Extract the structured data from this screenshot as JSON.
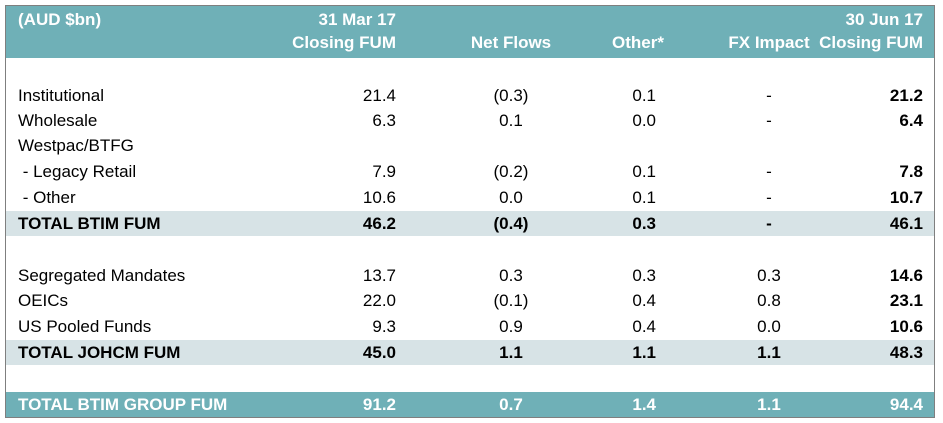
{
  "header": {
    "unit_label": "(AUD $bn)",
    "col1_top": "31 Mar 17",
    "col1_bottom": "Closing FUM",
    "col2": "Net Flows",
    "col3": "Other*",
    "col4": "FX Impact",
    "col5_top": "30 Jun 17",
    "col5_bottom": "Closing FUM"
  },
  "rows": [
    {
      "label": "Institutional",
      "v1": "21.4",
      "v2": "(0.3)",
      "v3": "0.1",
      "v4": "-",
      "v5": "21.2"
    },
    {
      "label": "Wholesale",
      "v1": "6.3",
      "v2": "0.1",
      "v3": "0.0",
      "v4": "-",
      "v5": "6.4"
    },
    {
      "label": "Westpac/BTFG",
      "v1": "",
      "v2": "",
      "v3": "",
      "v4": "",
      "v5": ""
    },
    {
      "label": " - Legacy Retail",
      "v1": "7.9",
      "v2": "(0.2)",
      "v3": "0.1",
      "v4": "-",
      "v5": "7.8"
    },
    {
      "label": " - Other",
      "v1": "10.6",
      "v2": "0.0",
      "v3": "0.1",
      "v4": "-",
      "v5": "10.7"
    },
    {
      "label": "TOTAL BTIM FUM",
      "v1": "46.2",
      "v2": "(0.4)",
      "v3": "0.3",
      "v4": "-",
      "v5": "46.1"
    },
    {
      "label": "Segregated Mandates",
      "v1": "13.7",
      "v2": "0.3",
      "v3": "0.3",
      "v4": "0.3",
      "v5": "14.6"
    },
    {
      "label": "OEICs",
      "v1": "22.0",
      "v2": "(0.1)",
      "v3": "0.4",
      "v4": "0.8",
      "v5": "23.1"
    },
    {
      "label": "US Pooled Funds",
      "v1": "9.3",
      "v2": "0.9",
      "v3": "0.4",
      "v4": "0.0",
      "v5": "10.6"
    },
    {
      "label": "TOTAL JOHCM FUM",
      "v1": "45.0",
      "v2": "1.1",
      "v3": "1.1",
      "v4": "1.1",
      "v5": "48.3"
    },
    {
      "label": "TOTAL BTIM GROUP FUM",
      "v1": "91.2",
      "v2": "0.7",
      "v3": "1.4",
      "v4": "1.1",
      "v5": "94.4"
    }
  ],
  "colors": {
    "header_bg": "#6fb0b7",
    "total_bg": "#d7e3e6",
    "header_text": "#ffffff"
  }
}
